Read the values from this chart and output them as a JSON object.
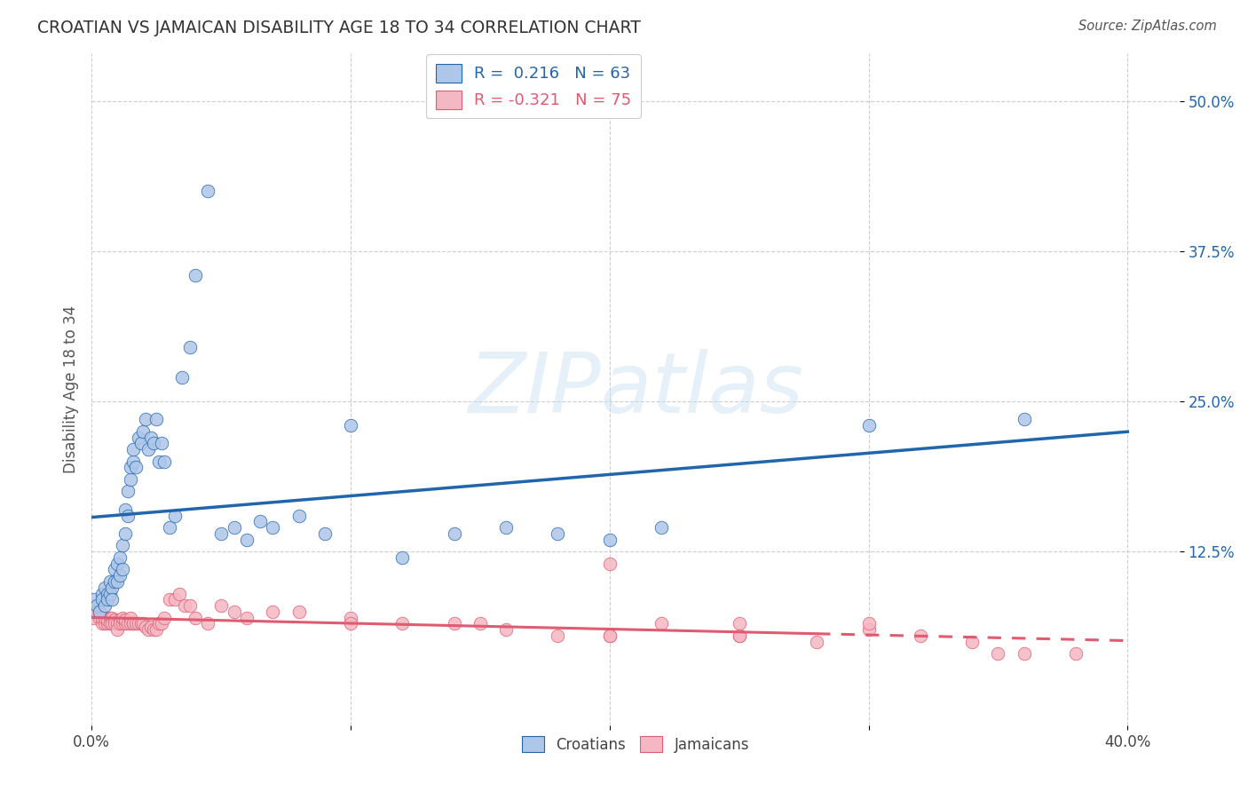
{
  "title": "CROATIAN VS JAMAICAN DISABILITY AGE 18 TO 34 CORRELATION CHART",
  "source": "Source: ZipAtlas.com",
  "ylabel": "Disability Age 18 to 34",
  "ytick_vals": [
    0.125,
    0.25,
    0.375,
    0.5
  ],
  "ytick_labels": [
    "12.5%",
    "25.0%",
    "37.5%",
    "50.0%"
  ],
  "xlim": [
    0.0,
    0.42
  ],
  "ylim": [
    -0.02,
    0.54
  ],
  "xtick_vals": [
    0.0,
    0.4
  ],
  "xtick_labels": [
    "0.0%",
    "40.0%"
  ],
  "croatian_R": 0.216,
  "croatian_N": 63,
  "jamaican_R": -0.321,
  "jamaican_N": 75,
  "croatian_color": "#aec6e8",
  "jamaican_color": "#f4b8c4",
  "croatian_line_color": "#2166ac",
  "jamaican_line_color": "#e05a70",
  "watermark_zip": "ZIP",
  "watermark_atlas": "atlas",
  "background_color": "#ffffff",
  "grid_color": "#c8c8c8",
  "croatian_x": [
    0.001,
    0.002,
    0.003,
    0.004,
    0.004,
    0.005,
    0.005,
    0.006,
    0.006,
    0.007,
    0.007,
    0.008,
    0.008,
    0.009,
    0.009,
    0.01,
    0.01,
    0.011,
    0.011,
    0.012,
    0.012,
    0.013,
    0.013,
    0.014,
    0.014,
    0.015,
    0.015,
    0.016,
    0.016,
    0.017,
    0.018,
    0.019,
    0.02,
    0.021,
    0.022,
    0.023,
    0.024,
    0.025,
    0.026,
    0.027,
    0.028,
    0.03,
    0.032,
    0.035,
    0.038,
    0.04,
    0.045,
    0.05,
    0.055,
    0.06,
    0.065,
    0.07,
    0.08,
    0.09,
    0.1,
    0.12,
    0.14,
    0.16,
    0.18,
    0.2,
    0.22,
    0.3,
    0.36
  ],
  "croatian_y": [
    0.085,
    0.08,
    0.075,
    0.09,
    0.085,
    0.08,
    0.095,
    0.09,
    0.085,
    0.09,
    0.1,
    0.095,
    0.085,
    0.11,
    0.1,
    0.1,
    0.115,
    0.105,
    0.12,
    0.11,
    0.13,
    0.14,
    0.16,
    0.155,
    0.175,
    0.185,
    0.195,
    0.2,
    0.21,
    0.195,
    0.22,
    0.215,
    0.225,
    0.235,
    0.21,
    0.22,
    0.215,
    0.235,
    0.2,
    0.215,
    0.2,
    0.145,
    0.155,
    0.27,
    0.295,
    0.355,
    0.425,
    0.14,
    0.145,
    0.135,
    0.15,
    0.145,
    0.155,
    0.14,
    0.23,
    0.12,
    0.14,
    0.145,
    0.14,
    0.135,
    0.145,
    0.23,
    0.235
  ],
  "jamaican_x": [
    0.001,
    0.001,
    0.002,
    0.003,
    0.004,
    0.004,
    0.005,
    0.005,
    0.006,
    0.006,
    0.007,
    0.007,
    0.008,
    0.008,
    0.009,
    0.009,
    0.01,
    0.01,
    0.011,
    0.011,
    0.012,
    0.012,
    0.013,
    0.013,
    0.014,
    0.015,
    0.015,
    0.016,
    0.016,
    0.017,
    0.018,
    0.019,
    0.02,
    0.021,
    0.022,
    0.023,
    0.024,
    0.025,
    0.026,
    0.027,
    0.028,
    0.03,
    0.032,
    0.034,
    0.036,
    0.038,
    0.04,
    0.045,
    0.05,
    0.055,
    0.06,
    0.07,
    0.08,
    0.1,
    0.12,
    0.14,
    0.16,
    0.18,
    0.2,
    0.22,
    0.25,
    0.28,
    0.3,
    0.32,
    0.34,
    0.36,
    0.38,
    0.2,
    0.25,
    0.3,
    0.1,
    0.15,
    0.2,
    0.25,
    0.35
  ],
  "jamaican_y": [
    0.075,
    0.07,
    0.075,
    0.07,
    0.065,
    0.07,
    0.065,
    0.07,
    0.065,
    0.068,
    0.07,
    0.065,
    0.07,
    0.065,
    0.068,
    0.065,
    0.065,
    0.06,
    0.068,
    0.065,
    0.065,
    0.07,
    0.065,
    0.068,
    0.065,
    0.07,
    0.065,
    0.065,
    0.065,
    0.065,
    0.065,
    0.065,
    0.065,
    0.062,
    0.06,
    0.062,
    0.06,
    0.06,
    0.065,
    0.065,
    0.07,
    0.085,
    0.085,
    0.09,
    0.08,
    0.08,
    0.07,
    0.065,
    0.08,
    0.075,
    0.07,
    0.075,
    0.075,
    0.07,
    0.065,
    0.065,
    0.06,
    0.055,
    0.055,
    0.065,
    0.055,
    0.05,
    0.06,
    0.055,
    0.05,
    0.04,
    0.04,
    0.115,
    0.065,
    0.065,
    0.065,
    0.065,
    0.055,
    0.055,
    0.04
  ]
}
